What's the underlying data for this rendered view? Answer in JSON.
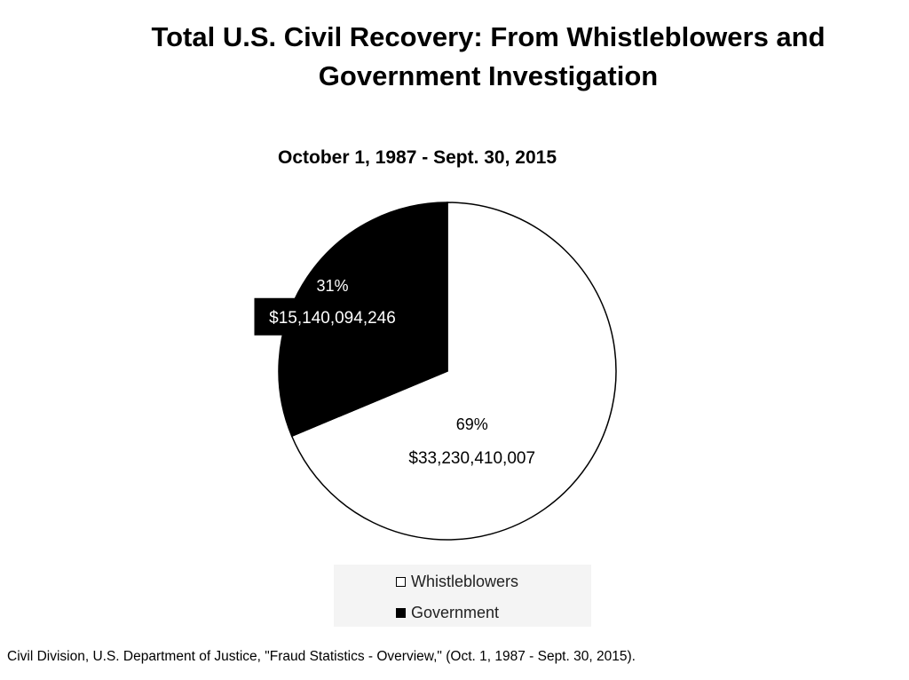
{
  "chart_data": {
    "type": "pie",
    "title": "Total U.S. Civil Recovery:  From Whistleblowers and Government Investigation",
    "subtitle": "October 1, 1987 - Sept. 30, 2015",
    "series": [
      {
        "name": "Whistleblowers",
        "percent_label": "69%",
        "amount_label": "$33,230,410,007",
        "value": 33230410007,
        "color": "#ffffff"
      },
      {
        "name": "Government",
        "percent_label": "31%",
        "amount_label": "$15,140,094,246",
        "value": 15140094246,
        "color": "#000000"
      }
    ],
    "legend_position": "bottom"
  },
  "source": "Civil Division, U.S. Department of Justice, \"Fraud Statistics - Overview,\" (Oct. 1, 1987 - Sept. 30, 2015)."
}
